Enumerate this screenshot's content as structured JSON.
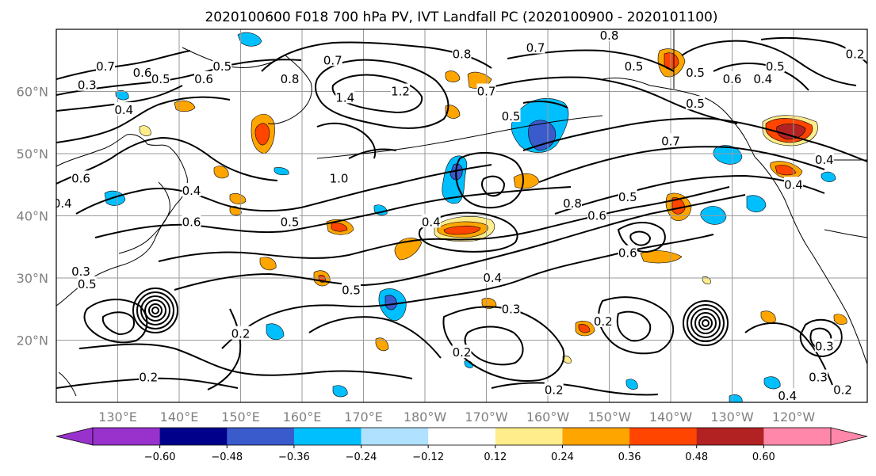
{
  "title": "2020100600 F018 700 hPa PV, IVT Landfall PC (2020100900 - 2020101100)",
  "map": {
    "projection": "PlateCarree",
    "lon_range": [
      120,
      252
    ],
    "lat_range": [
      10,
      70
    ],
    "grid": true,
    "lon_ticks": [
      {
        "lon": 130,
        "label": "130°E"
      },
      {
        "lon": 140,
        "label": "140°E"
      },
      {
        "lon": 150,
        "label": "150°E"
      },
      {
        "lon": 160,
        "label": "160°E"
      },
      {
        "lon": 170,
        "label": "170°E"
      },
      {
        "lon": 180,
        "label": "180°W"
      },
      {
        "lon": 190,
        "label": "170°W"
      },
      {
        "lon": 200,
        "label": "160°W"
      },
      {
        "lon": 210,
        "label": "150°W"
      },
      {
        "lon": 220,
        "label": "140°W"
      },
      {
        "lon": 230,
        "label": "130°W"
      },
      {
        "lon": 240,
        "label": "120°W"
      }
    ],
    "lat_ticks": [
      {
        "lat": 20,
        "label": "20°N"
      },
      {
        "lat": 30,
        "label": "30°N"
      },
      {
        "lat": 40,
        "label": "40°N"
      },
      {
        "lat": 50,
        "label": "50°N"
      },
      {
        "lat": 60,
        "label": "60°N"
      }
    ]
  },
  "colorbar": {
    "orientation": "horizontal",
    "extend": "both",
    "colors": [
      "#9932cc",
      "#00008b",
      "#3a5bcc",
      "#00bfff",
      "#b0e2ff",
      "#ffffff",
      "#ffec8b",
      "#ffa500",
      "#ff4500",
      "#b22222",
      "#ff88aa"
    ],
    "tick_labels": [
      "−0.60",
      "−0.48",
      "−0.36",
      "−0.24",
      "−0.12",
      "0.12",
      "0.24",
      "0.36",
      "0.48",
      "0.60"
    ]
  },
  "contour_labels": [
    {
      "text": "0.7",
      "lon": 128,
      "lat": 64
    },
    {
      "text": "0.6",
      "lon": 134,
      "lat": 63
    },
    {
      "text": "0.5",
      "lon": 137,
      "lat": 62
    },
    {
      "text": "0.3",
      "lon": 125,
      "lat": 61
    },
    {
      "text": "0.4",
      "lon": 131,
      "lat": 57
    },
    {
      "text": "0.5",
      "lon": 147,
      "lat": 64
    },
    {
      "text": "0.6",
      "lon": 144,
      "lat": 62
    },
    {
      "text": "0.8",
      "lon": 158,
      "lat": 62
    },
    {
      "text": "0.7",
      "lon": 165,
      "lat": 65
    },
    {
      "text": "1.4",
      "lon": 167,
      "lat": 59
    },
    {
      "text": "1.2",
      "lon": 176,
      "lat": 60
    },
    {
      "text": "0.8",
      "lon": 186,
      "lat": 66
    },
    {
      "text": "0.7",
      "lon": 198,
      "lat": 67
    },
    {
      "text": "0.7",
      "lon": 190,
      "lat": 60
    },
    {
      "text": "0.5",
      "lon": 194,
      "lat": 56
    },
    {
      "text": "0.8",
      "lon": 210,
      "lat": 69
    },
    {
      "text": "0.5",
      "lon": 214,
      "lat": 64
    },
    {
      "text": "0.5",
      "lon": 224,
      "lat": 63
    },
    {
      "text": "0.6",
      "lon": 230,
      "lat": 62
    },
    {
      "text": "0.4",
      "lon": 235,
      "lat": 62
    },
    {
      "text": "0.5",
      "lon": 237,
      "lat": 64
    },
    {
      "text": "0.2",
      "lon": 250,
      "lat": 66
    },
    {
      "text": "0.5",
      "lon": 224,
      "lat": 58
    },
    {
      "text": "0.7",
      "lon": 220,
      "lat": 52
    },
    {
      "text": "0.4",
      "lon": 245,
      "lat": 49
    },
    {
      "text": "0.4",
      "lon": 240,
      "lat": 45
    },
    {
      "text": "0.6",
      "lon": 124,
      "lat": 46
    },
    {
      "text": "0.4",
      "lon": 121,
      "lat": 42
    },
    {
      "text": "0.4",
      "lon": 142,
      "lat": 44
    },
    {
      "text": "0.6",
      "lon": 142,
      "lat": 39
    },
    {
      "text": "1.0",
      "lon": 166,
      "lat": 46
    },
    {
      "text": "0.5",
      "lon": 158,
      "lat": 39
    },
    {
      "text": "0.4",
      "lon": 181,
      "lat": 39
    },
    {
      "text": "0.8",
      "lon": 204,
      "lat": 42
    },
    {
      "text": "0.6",
      "lon": 208,
      "lat": 40
    },
    {
      "text": "0.5",
      "lon": 213,
      "lat": 43
    },
    {
      "text": "0.6",
      "lon": 213,
      "lat": 34
    },
    {
      "text": "0.4",
      "lon": 191,
      "lat": 30
    },
    {
      "text": "0.5",
      "lon": 168,
      "lat": 28
    },
    {
      "text": "0.3",
      "lon": 194,
      "lat": 25
    },
    {
      "text": "0.2",
      "lon": 186,
      "lat": 18
    },
    {
      "text": "0.2",
      "lon": 150,
      "lat": 21
    },
    {
      "text": "0.2",
      "lon": 209,
      "lat": 23
    },
    {
      "text": "0.2",
      "lon": 135,
      "lat": 14
    },
    {
      "text": "0.2",
      "lon": 201,
      "lat": 12
    },
    {
      "text": "0.3",
      "lon": 245,
      "lat": 19
    },
    {
      "text": "0.3",
      "lon": 244,
      "lat": 14
    },
    {
      "text": "0.4",
      "lon": 239,
      "lat": 11
    },
    {
      "text": "0.2",
      "lon": 248,
      "lat": 12
    },
    {
      "text": "0.3",
      "lon": 124,
      "lat": 31
    },
    {
      "text": "0.5",
      "lon": 125,
      "lat": 29
    }
  ]
}
